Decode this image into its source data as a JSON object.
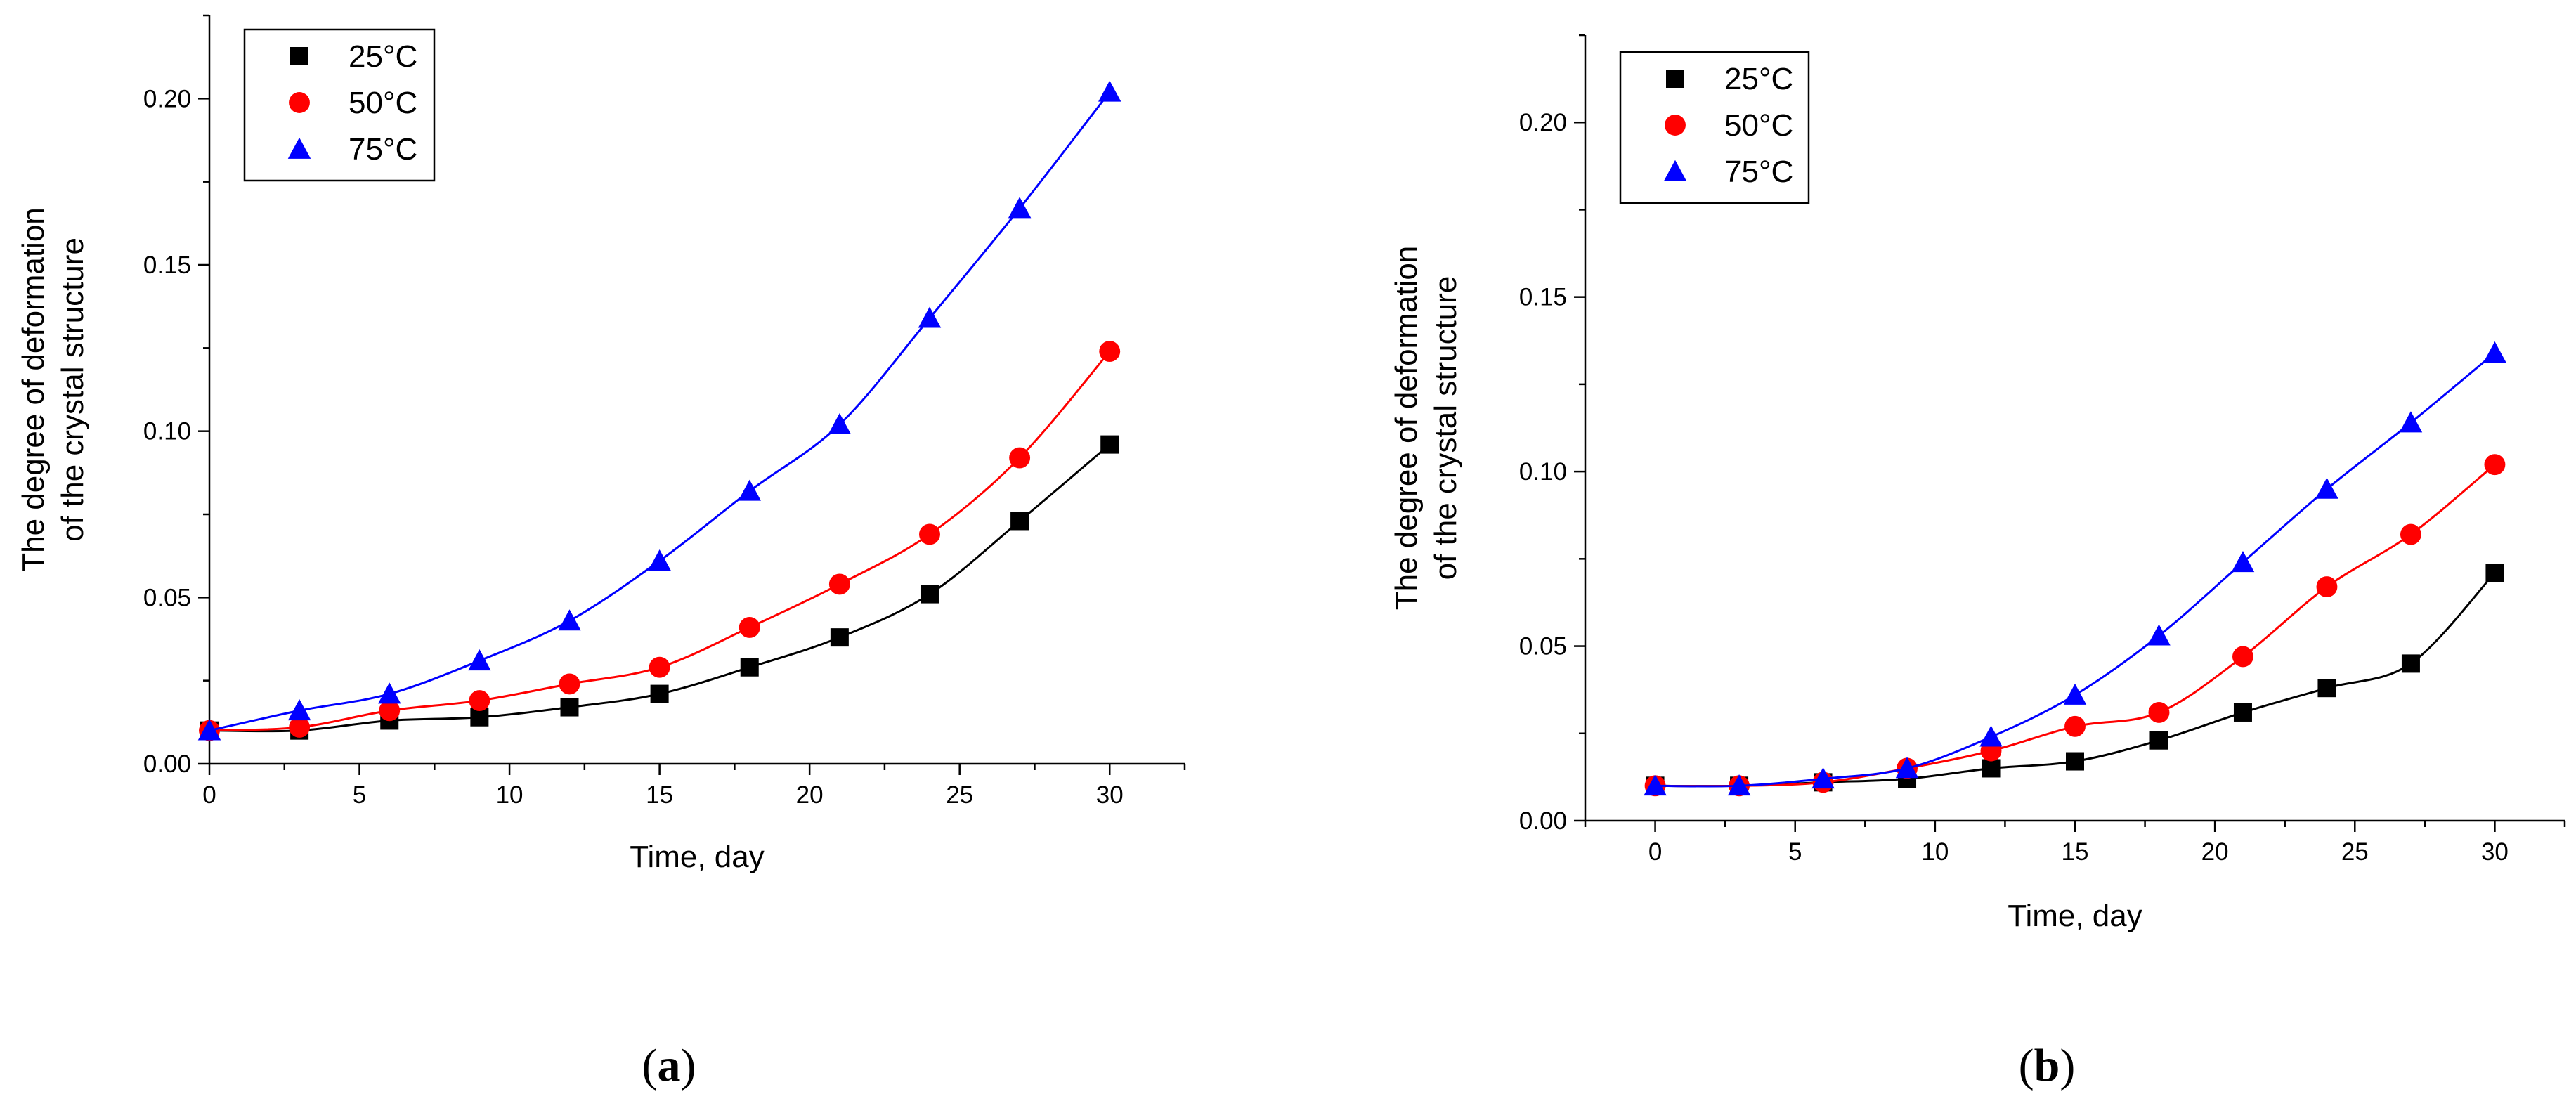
{
  "chart_data": [
    {
      "type": "scatter",
      "panel_label": "a",
      "xlabel": "Time, day",
      "ylabel_lines": [
        "The degree of deformation",
        "of the crystal structure"
      ],
      "xlim": [
        0,
        32.5
      ],
      "ylim": [
        0,
        0.225
      ],
      "xticks": [
        0,
        5,
        10,
        15,
        20,
        25,
        30
      ],
      "xtick_labels": [
        "0",
        "5",
        "10",
        "15",
        "20",
        "25",
        "30"
      ],
      "yticks": [
        0,
        0.05,
        0.1,
        0.15,
        0.2
      ],
      "ytick_labels": [
        "0.00",
        "0.05",
        "0.10",
        "0.15",
        "0.20"
      ],
      "legend_position": "top-left",
      "series": [
        {
          "name": "25°C",
          "marker": "square",
          "color": "#000000",
          "x": [
            0,
            3,
            6,
            9,
            12,
            15,
            18,
            21,
            24,
            27,
            30
          ],
          "y": [
            0.01,
            0.01,
            0.013,
            0.014,
            0.017,
            0.021,
            0.029,
            0.038,
            0.051,
            0.073,
            0.096
          ]
        },
        {
          "name": "50°C",
          "marker": "circle",
          "color": "#ff0000",
          "x": [
            0,
            3,
            6,
            9,
            12,
            15,
            18,
            21,
            24,
            27,
            30
          ],
          "y": [
            0.01,
            0.011,
            0.016,
            0.019,
            0.024,
            0.029,
            0.041,
            0.054,
            0.069,
            0.092,
            0.124
          ]
        },
        {
          "name": "75°C",
          "marker": "triangle",
          "color": "#0000ff",
          "x": [
            0,
            3,
            6,
            9,
            12,
            15,
            18,
            21,
            24,
            27,
            30
          ],
          "y": [
            0.01,
            0.016,
            0.021,
            0.031,
            0.043,
            0.061,
            0.082,
            0.102,
            0.134,
            0.167,
            0.202
          ]
        }
      ]
    },
    {
      "type": "scatter",
      "panel_label": "b",
      "xlabel": "Time, day",
      "ylabel_lines": [
        "The degree of deformation",
        "of the crystal structure"
      ],
      "xlim": [
        -2.5,
        32.5
      ],
      "ylim": [
        0,
        0.225
      ],
      "xticks": [
        0,
        5,
        10,
        15,
        20,
        25,
        30
      ],
      "xtick_labels": [
        "0",
        "5",
        "10",
        "15",
        "20",
        "25",
        "30"
      ],
      "yticks": [
        0,
        0.05,
        0.1,
        0.15,
        0.2
      ],
      "ytick_labels": [
        "0.00",
        "0.05",
        "0.10",
        "0.15",
        "0.20"
      ],
      "legend_position": "top-left",
      "series": [
        {
          "name": "25°C",
          "marker": "square",
          "color": "#000000",
          "x": [
            0,
            3,
            6,
            9,
            12,
            15,
            18,
            21,
            24,
            27,
            30
          ],
          "y": [
            0.01,
            0.01,
            0.011,
            0.012,
            0.015,
            0.017,
            0.023,
            0.031,
            0.038,
            0.045,
            0.071
          ]
        },
        {
          "name": "50°C",
          "marker": "circle",
          "color": "#ff0000",
          "x": [
            0,
            3,
            6,
            9,
            12,
            15,
            18,
            21,
            24,
            27,
            30
          ],
          "y": [
            0.01,
            0.01,
            0.011,
            0.015,
            0.02,
            0.027,
            0.031,
            0.047,
            0.067,
            0.082,
            0.102
          ]
        },
        {
          "name": "75°C",
          "marker": "triangle",
          "color": "#0000ff",
          "x": [
            0,
            3,
            6,
            9,
            12,
            15,
            18,
            21,
            24,
            27,
            30
          ],
          "y": [
            0.01,
            0.01,
            0.012,
            0.015,
            0.024,
            0.036,
            0.053,
            0.074,
            0.095,
            0.114,
            0.134
          ]
        }
      ]
    }
  ]
}
